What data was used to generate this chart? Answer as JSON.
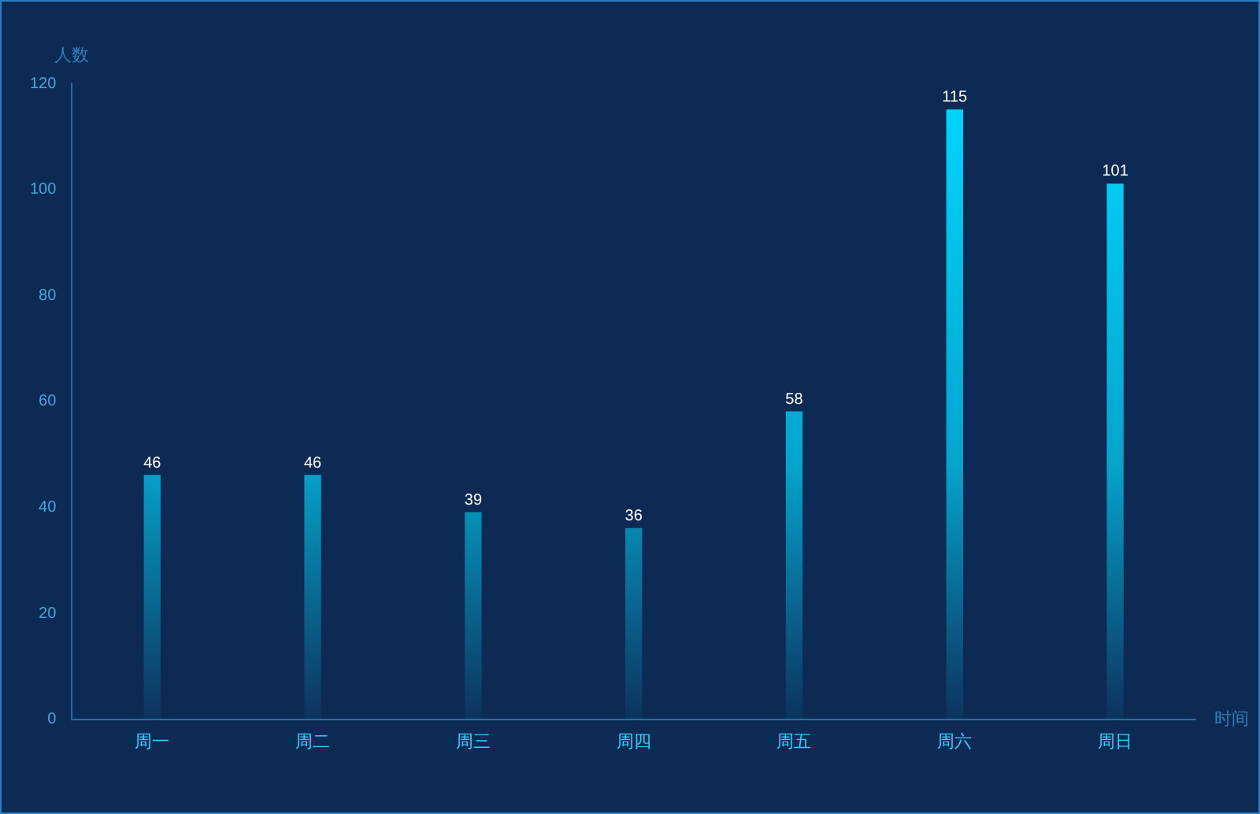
{
  "chart_data": {
    "type": "bar",
    "xlabel": "时间",
    "ylabel": "人数",
    "categories": [
      "周一",
      "周二",
      "周三",
      "周四",
      "周五",
      "周六",
      "周日"
    ],
    "values": [
      46,
      46,
      39,
      36,
      58,
      115,
      101
    ],
    "color": "#00d8ff",
    "ylim": [
      0,
      120
    ],
    "yticks": [
      0,
      20,
      40,
      60,
      80,
      100,
      120
    ],
    "grid": false,
    "legend": false,
    "data_labels": true
  }
}
